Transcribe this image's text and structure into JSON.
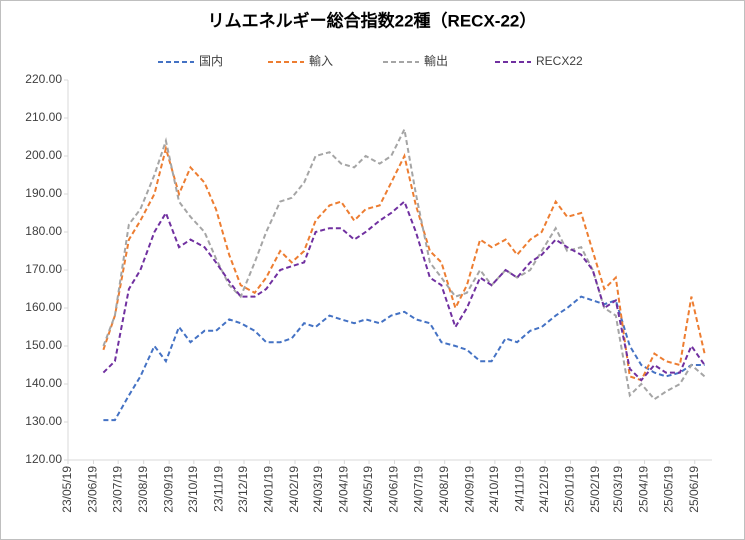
{
  "chart_data": {
    "type": "line",
    "title": "リムエネルギー総合指数22種（RECX-22）",
    "x": [
      "23/07/01",
      "23/07/15",
      "23/08/01",
      "23/08/15",
      "23/09/01",
      "23/09/15",
      "23/10/01",
      "23/10/15",
      "23/11/01",
      "23/11/15",
      "23/12/01",
      "23/12/15",
      "24/01/01",
      "24/01/15",
      "24/02/01",
      "24/02/15",
      "24/03/01",
      "24/03/15",
      "24/04/01",
      "24/04/15",
      "24/05/01",
      "24/05/15",
      "24/06/01",
      "24/06/15",
      "24/07/01",
      "24/07/15",
      "24/08/01",
      "24/08/15",
      "24/09/01",
      "24/09/15",
      "24/10/01",
      "24/10/15",
      "24/11/01",
      "24/11/15",
      "24/12/01",
      "24/12/15",
      "25/01/01",
      "25/01/15",
      "25/02/01",
      "25/02/15",
      "25/03/01",
      "25/03/15",
      "25/04/01",
      "25/04/15",
      "25/05/01",
      "25/05/15",
      "25/06/01",
      "25/06/15",
      "25/07/01"
    ],
    "series": [
      {
        "name": "国内",
        "color": "#4472c4",
        "values": [
          130.5,
          130.5,
          137,
          142,
          150,
          146,
          155,
          151,
          154,
          154,
          157,
          156,
          154,
          151,
          151,
          152,
          156,
          155,
          158,
          157,
          156,
          157,
          156,
          158,
          159,
          157,
          156,
          151,
          150,
          149,
          146,
          146,
          152,
          151,
          154,
          155,
          158,
          160,
          163,
          162,
          161,
          162,
          150,
          145,
          143,
          142,
          143,
          145,
          145
        ]
      },
      {
        "name": "輸入",
        "color": "#ed7d31",
        "values": [
          149,
          158,
          178,
          183,
          190,
          202,
          190,
          197,
          193,
          186,
          174,
          166,
          164,
          168,
          175,
          172,
          175,
          183,
          187,
          188,
          183,
          186,
          187,
          193,
          200,
          187,
          175,
          172,
          160,
          166,
          178,
          176,
          178,
          174,
          178,
          180,
          188,
          184,
          185,
          175,
          165,
          168,
          142,
          141,
          148,
          146,
          145,
          163,
          148
        ]
      },
      {
        "name": "輸出",
        "color": "#a5a5a5",
        "values": [
          150,
          158,
          182,
          186,
          195,
          204,
          188,
          184,
          180,
          173,
          166,
          163,
          172,
          180,
          188,
          189,
          193,
          200,
          201,
          198,
          197,
          200,
          198,
          200,
          207,
          190,
          172,
          168,
          163,
          164,
          170,
          166,
          170,
          168,
          170,
          175,
          181,
          175,
          176,
          170,
          160,
          158,
          137,
          140,
          136,
          138,
          140,
          145,
          142
        ]
      },
      {
        "name": "RECX22",
        "color": "#7030a0",
        "values": [
          143,
          146,
          165,
          170,
          180,
          185,
          176,
          178,
          176,
          172,
          167,
          163,
          163,
          165,
          170,
          171,
          172,
          180,
          181,
          181,
          178,
          180,
          183,
          185,
          188,
          180,
          168,
          166,
          155,
          160,
          168,
          166,
          170,
          168,
          172,
          174,
          178,
          176,
          174,
          170,
          160,
          162,
          144,
          141,
          145,
          143,
          143,
          150,
          145
        ]
      }
    ],
    "xlim": [
      "23/05/19",
      "25/07/10"
    ],
    "xticks": [
      "23/05/19",
      "23/06/19",
      "23/07/19",
      "23/08/19",
      "23/09/19",
      "23/10/19",
      "23/11/19",
      "23/12/19",
      "24/01/19",
      "24/02/19",
      "24/03/19",
      "24/04/19",
      "24/05/19",
      "24/06/19",
      "24/07/19",
      "24/08/19",
      "24/09/19",
      "24/10/19",
      "24/11/19",
      "24/12/19",
      "25/01/19",
      "25/02/19",
      "25/03/19",
      "25/04/19",
      "25/05/19",
      "25/06/19"
    ],
    "ylim": [
      120,
      220
    ],
    "yticks": [
      {
        "value": 120,
        "label": "120.00"
      },
      {
        "value": 130,
        "label": "130.00"
      },
      {
        "value": 140,
        "label": "140.00"
      },
      {
        "value": 150,
        "label": "150.00"
      },
      {
        "value": 160,
        "label": "160.00"
      },
      {
        "value": 170,
        "label": "170.00"
      },
      {
        "value": 180,
        "label": "180.00"
      },
      {
        "value": 190,
        "label": "190.00"
      },
      {
        "value": 200,
        "label": "200.00"
      },
      {
        "value": 210,
        "label": "210.00"
      },
      {
        "value": 220,
        "label": "220.00"
      }
    ],
    "grid": false,
    "legend": "top"
  }
}
